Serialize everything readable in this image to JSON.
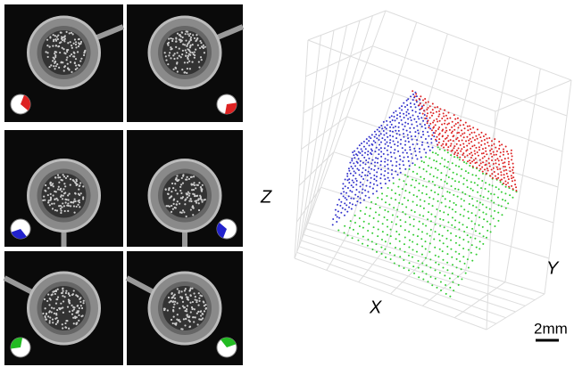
{
  "figure": {
    "axis_labels": {
      "x": "X",
      "y": "Y",
      "z": "Z"
    },
    "scale_bar": "2mm"
  }
}
